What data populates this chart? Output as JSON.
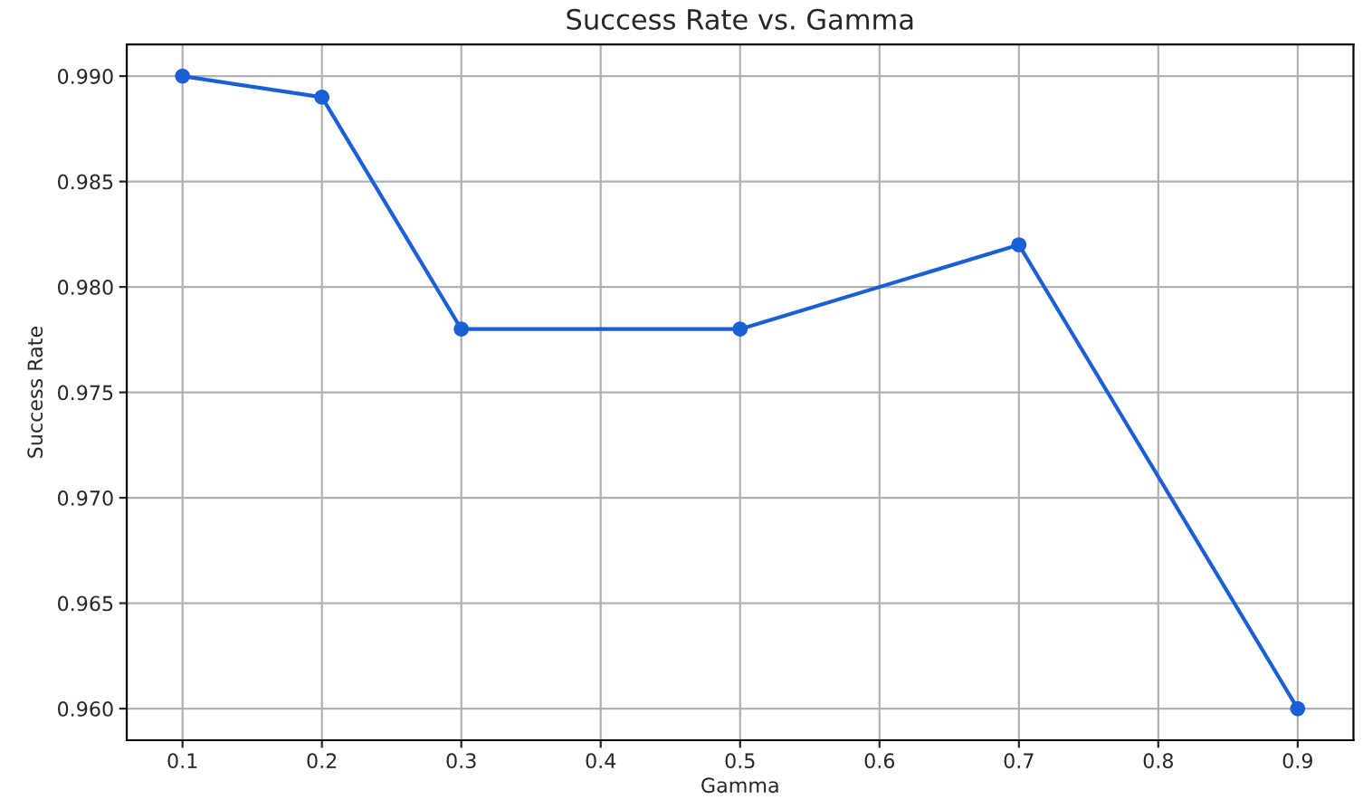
{
  "chart_data": {
    "type": "line",
    "title": "Success Rate vs. Gamma",
    "xlabel": "Gamma",
    "ylabel": "Success Rate",
    "x": [
      0.1,
      0.2,
      0.3,
      0.5,
      0.7,
      0.9
    ],
    "series": [
      {
        "color": "#1a5fd6",
        "values": [
          0.99,
          0.989,
          0.978,
          0.978,
          0.982,
          0.96
        ]
      }
    ],
    "xlim": [
      0.06,
      0.94
    ],
    "ylim": [
      0.9585,
      0.9915
    ],
    "xticks": [
      {
        "value": 0.1,
        "label": "0.1"
      },
      {
        "value": 0.2,
        "label": "0.2"
      },
      {
        "value": 0.3,
        "label": "0.3"
      },
      {
        "value": 0.4,
        "label": "0.4"
      },
      {
        "value": 0.5,
        "label": "0.5"
      },
      {
        "value": 0.6,
        "label": "0.6"
      },
      {
        "value": 0.7,
        "label": "0.7"
      },
      {
        "value": 0.8,
        "label": "0.8"
      },
      {
        "value": 0.9,
        "label": "0.9"
      }
    ],
    "yticks": [
      {
        "value": 0.96,
        "label": "0.960"
      },
      {
        "value": 0.965,
        "label": "0.965"
      },
      {
        "value": 0.97,
        "label": "0.970"
      },
      {
        "value": 0.975,
        "label": "0.975"
      },
      {
        "value": 0.98,
        "label": "0.980"
      },
      {
        "value": 0.985,
        "label": "0.985"
      },
      {
        "value": 0.99,
        "label": "0.990"
      }
    ],
    "grid": true,
    "marker": "circle",
    "line_style": "solid"
  }
}
